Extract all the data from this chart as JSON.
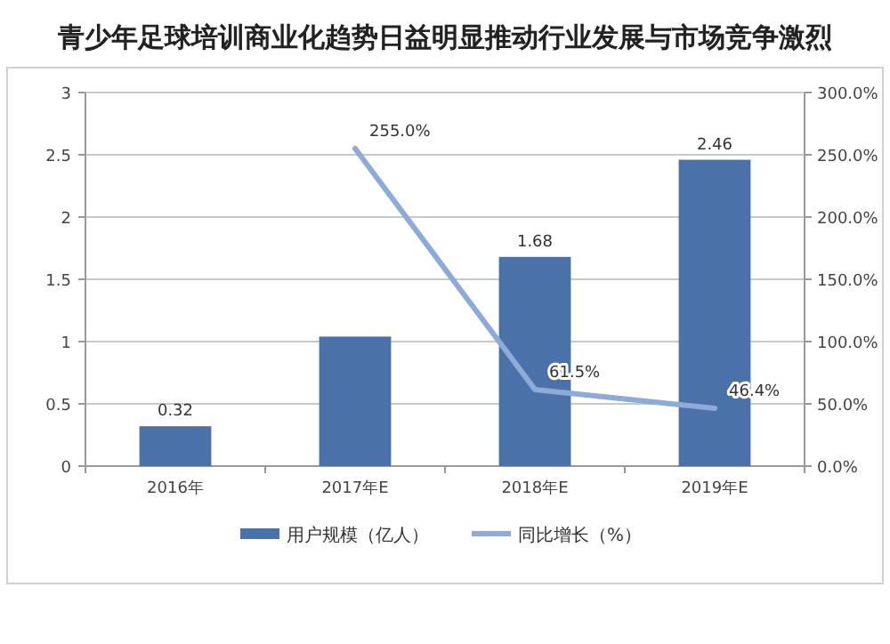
{
  "chart_data": {
    "type": "bar",
    "title": "青少年足球培训商业化趋势日益明显推动行业发展与市场竞争激烈",
    "categories": [
      "2016年",
      "2017年E",
      "2018年E",
      "2019年E"
    ],
    "series": [
      {
        "name": "用户规模（亿人）",
        "color": "#4a72a8",
        "values": [
          0.32,
          1.04,
          1.68,
          2.46
        ],
        "value_labels": [
          "0.32",
          null,
          "1.68",
          "2.46"
        ]
      },
      {
        "name": "同比增长（%）",
        "type": "line",
        "axis": "y2",
        "color": "#8eaad6",
        "values": [
          null,
          255.0,
          61.5,
          46.4
        ],
        "value_labels": [
          null,
          "255.0%",
          "61.5%",
          "46.4%"
        ]
      }
    ],
    "ylim": [
      0,
      3
    ],
    "yticks": [
      0,
      0.5,
      1,
      1.5,
      2,
      2.5,
      3
    ],
    "y2lim": [
      0,
      300
    ],
    "y2ticks": [
      {
        "value": 0,
        "label": "0.0%"
      },
      {
        "value": 50,
        "label": "50.0%"
      },
      {
        "value": 100,
        "label": "100.0%"
      },
      {
        "value": 150,
        "label": "150.0%"
      },
      {
        "value": 200,
        "label": "200.0%"
      },
      {
        "value": 250,
        "label": "250.0%"
      },
      {
        "value": 300,
        "label": "300.0%"
      }
    ],
    "grid": "y",
    "legend": "bottom"
  }
}
